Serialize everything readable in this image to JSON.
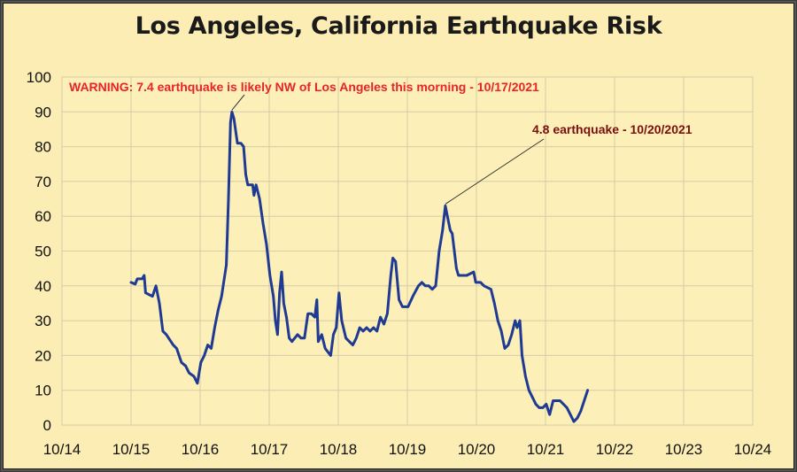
{
  "chart_data": {
    "type": "line",
    "title": "Los Angeles, California Earthquake Risk",
    "xlabel": "",
    "ylabel": "",
    "x_ticks": [
      "10/14",
      "10/15",
      "10/16",
      "10/17",
      "10/18",
      "10/19",
      "10/20",
      "10/21",
      "10/22",
      "10/23",
      "10/24"
    ],
    "y_ticks": [
      0,
      10,
      20,
      30,
      40,
      50,
      60,
      70,
      80,
      90,
      100
    ],
    "xlim": [
      "10/14",
      "10/24"
    ],
    "ylim": [
      0,
      100
    ],
    "grid": true,
    "line_color": "#1f3a93",
    "series": [
      {
        "points": [
          [
            2015.79,
            41
          ],
          [
            2015.85,
            40.5
          ],
          [
            2015.88,
            42
          ],
          [
            2015.95,
            42
          ],
          [
            2015.98,
            43
          ],
          [
            2016.0,
            38
          ],
          [
            2016.1,
            37
          ],
          [
            2016.15,
            40
          ],
          [
            2016.2,
            35
          ],
          [
            2016.25,
            27
          ],
          [
            2016.3,
            26
          ],
          [
            2016.4,
            23
          ],
          [
            2016.45,
            22
          ],
          [
            2016.52,
            18
          ],
          [
            2016.58,
            17
          ],
          [
            2016.63,
            15
          ],
          [
            2016.7,
            14
          ],
          [
            2016.75,
            12
          ],
          [
            2016.8,
            18
          ],
          [
            2016.85,
            20
          ],
          [
            2016.9,
            23
          ],
          [
            2016.95,
            22
          ],
          [
            2017.0,
            28
          ],
          [
            2017.05,
            33
          ],
          [
            2017.1,
            37
          ],
          [
            2017.17,
            46
          ],
          [
            2017.2,
            65
          ],
          [
            2017.23,
            87
          ],
          [
            2017.25,
            90
          ],
          [
            2017.28,
            88
          ],
          [
            2017.33,
            81
          ],
          [
            2017.38,
            81
          ],
          [
            2017.42,
            80
          ],
          [
            2017.45,
            72
          ],
          [
            2017.48,
            69
          ],
          [
            2017.55,
            69
          ],
          [
            2017.57,
            66
          ],
          [
            2017.6,
            69
          ],
          [
            2017.65,
            65
          ],
          [
            2017.7,
            58
          ],
          [
            2017.75,
            52
          ],
          [
            2017.8,
            43
          ],
          [
            2017.85,
            37
          ],
          [
            2017.88,
            30
          ],
          [
            2017.91,
            26
          ],
          [
            2017.94,
            38
          ],
          [
            2017.97,
            44
          ],
          [
            2018.0,
            35
          ],
          [
            2018.04,
            31
          ],
          [
            2018.08,
            25
          ],
          [
            2018.12,
            24
          ],
          [
            2018.2,
            26
          ],
          [
            2018.25,
            25
          ],
          [
            2018.3,
            25
          ],
          [
            2018.35,
            32
          ],
          [
            2018.4,
            32
          ],
          [
            2018.45,
            31
          ],
          [
            2018.48,
            36
          ],
          [
            2018.5,
            24
          ],
          [
            2018.55,
            26
          ],
          [
            2018.6,
            22
          ],
          [
            2018.68,
            20
          ],
          [
            2018.72,
            26
          ],
          [
            2018.76,
            28
          ],
          [
            2018.8,
            38
          ],
          [
            2018.84,
            30
          ],
          [
            2018.9,
            25
          ],
          [
            2018.95,
            24
          ],
          [
            2019.0,
            23
          ],
          [
            2019.05,
            25
          ],
          [
            2019.1,
            28
          ],
          [
            2019.15,
            27
          ],
          [
            2019.2,
            28
          ],
          [
            2019.25,
            27
          ],
          [
            2019.3,
            28
          ],
          [
            2019.35,
            27
          ],
          [
            2019.4,
            31
          ],
          [
            2019.45,
            29
          ],
          [
            2019.5,
            32
          ],
          [
            2019.55,
            43
          ],
          [
            2019.58,
            48
          ],
          [
            2019.62,
            47
          ],
          [
            2019.67,
            36
          ],
          [
            2019.72,
            34
          ],
          [
            2019.8,
            34
          ],
          [
            2019.87,
            37
          ],
          [
            2019.95,
            40
          ],
          [
            2020.0,
            41
          ],
          [
            2020.05,
            40
          ],
          [
            2020.1,
            40
          ],
          [
            2020.15,
            39
          ],
          [
            2020.2,
            40
          ],
          [
            2020.25,
            50
          ],
          [
            2020.3,
            56
          ],
          [
            2020.34,
            63
          ],
          [
            2020.37,
            60
          ],
          [
            2020.41,
            56
          ],
          [
            2020.44,
            55
          ],
          [
            2020.5,
            45
          ],
          [
            2020.53,
            43
          ],
          [
            2020.6,
            43
          ],
          [
            2020.65,
            43
          ],
          [
            2020.75,
            44
          ],
          [
            2020.78,
            41
          ],
          [
            2020.85,
            41
          ],
          [
            2020.9,
            40
          ],
          [
            2021.0,
            39
          ],
          [
            2021.05,
            35
          ],
          [
            2021.1,
            30
          ],
          [
            2021.15,
            27
          ],
          [
            2021.2,
            22
          ],
          [
            2021.25,
            23
          ],
          [
            2021.3,
            26
          ],
          [
            2021.35,
            30
          ],
          [
            2021.38,
            28
          ],
          [
            2021.42,
            30
          ],
          [
            2021.45,
            20
          ],
          [
            2021.5,
            14
          ],
          [
            2021.55,
            10
          ],
          [
            2021.6,
            8
          ],
          [
            2021.65,
            6
          ],
          [
            2021.7,
            5
          ],
          [
            2021.75,
            5
          ],
          [
            2021.8,
            6
          ],
          [
            2021.85,
            3
          ],
          [
            2021.9,
            7
          ],
          [
            2021.95,
            7
          ],
          [
            2022.0,
            7
          ],
          [
            2022.05,
            6
          ],
          [
            2022.1,
            5
          ],
          [
            2022.15,
            3
          ],
          [
            2022.2,
            1
          ],
          [
            2022.25,
            2
          ],
          [
            2022.3,
            4
          ],
          [
            2022.35,
            7
          ],
          [
            2022.4,
            10
          ]
        ]
      }
    ],
    "annotations": [
      {
        "text": "WARNING: 7.4 earthquake is likely NW of Los Angeles this morning - 10/17/2021",
        "x": 2017.25,
        "y": 90,
        "color": "#e8232a"
      },
      {
        "text": "4.8 earthquake - 10/20/2021",
        "x": 2020.34,
        "y": 63,
        "color": "#7a0f0f"
      }
    ]
  }
}
